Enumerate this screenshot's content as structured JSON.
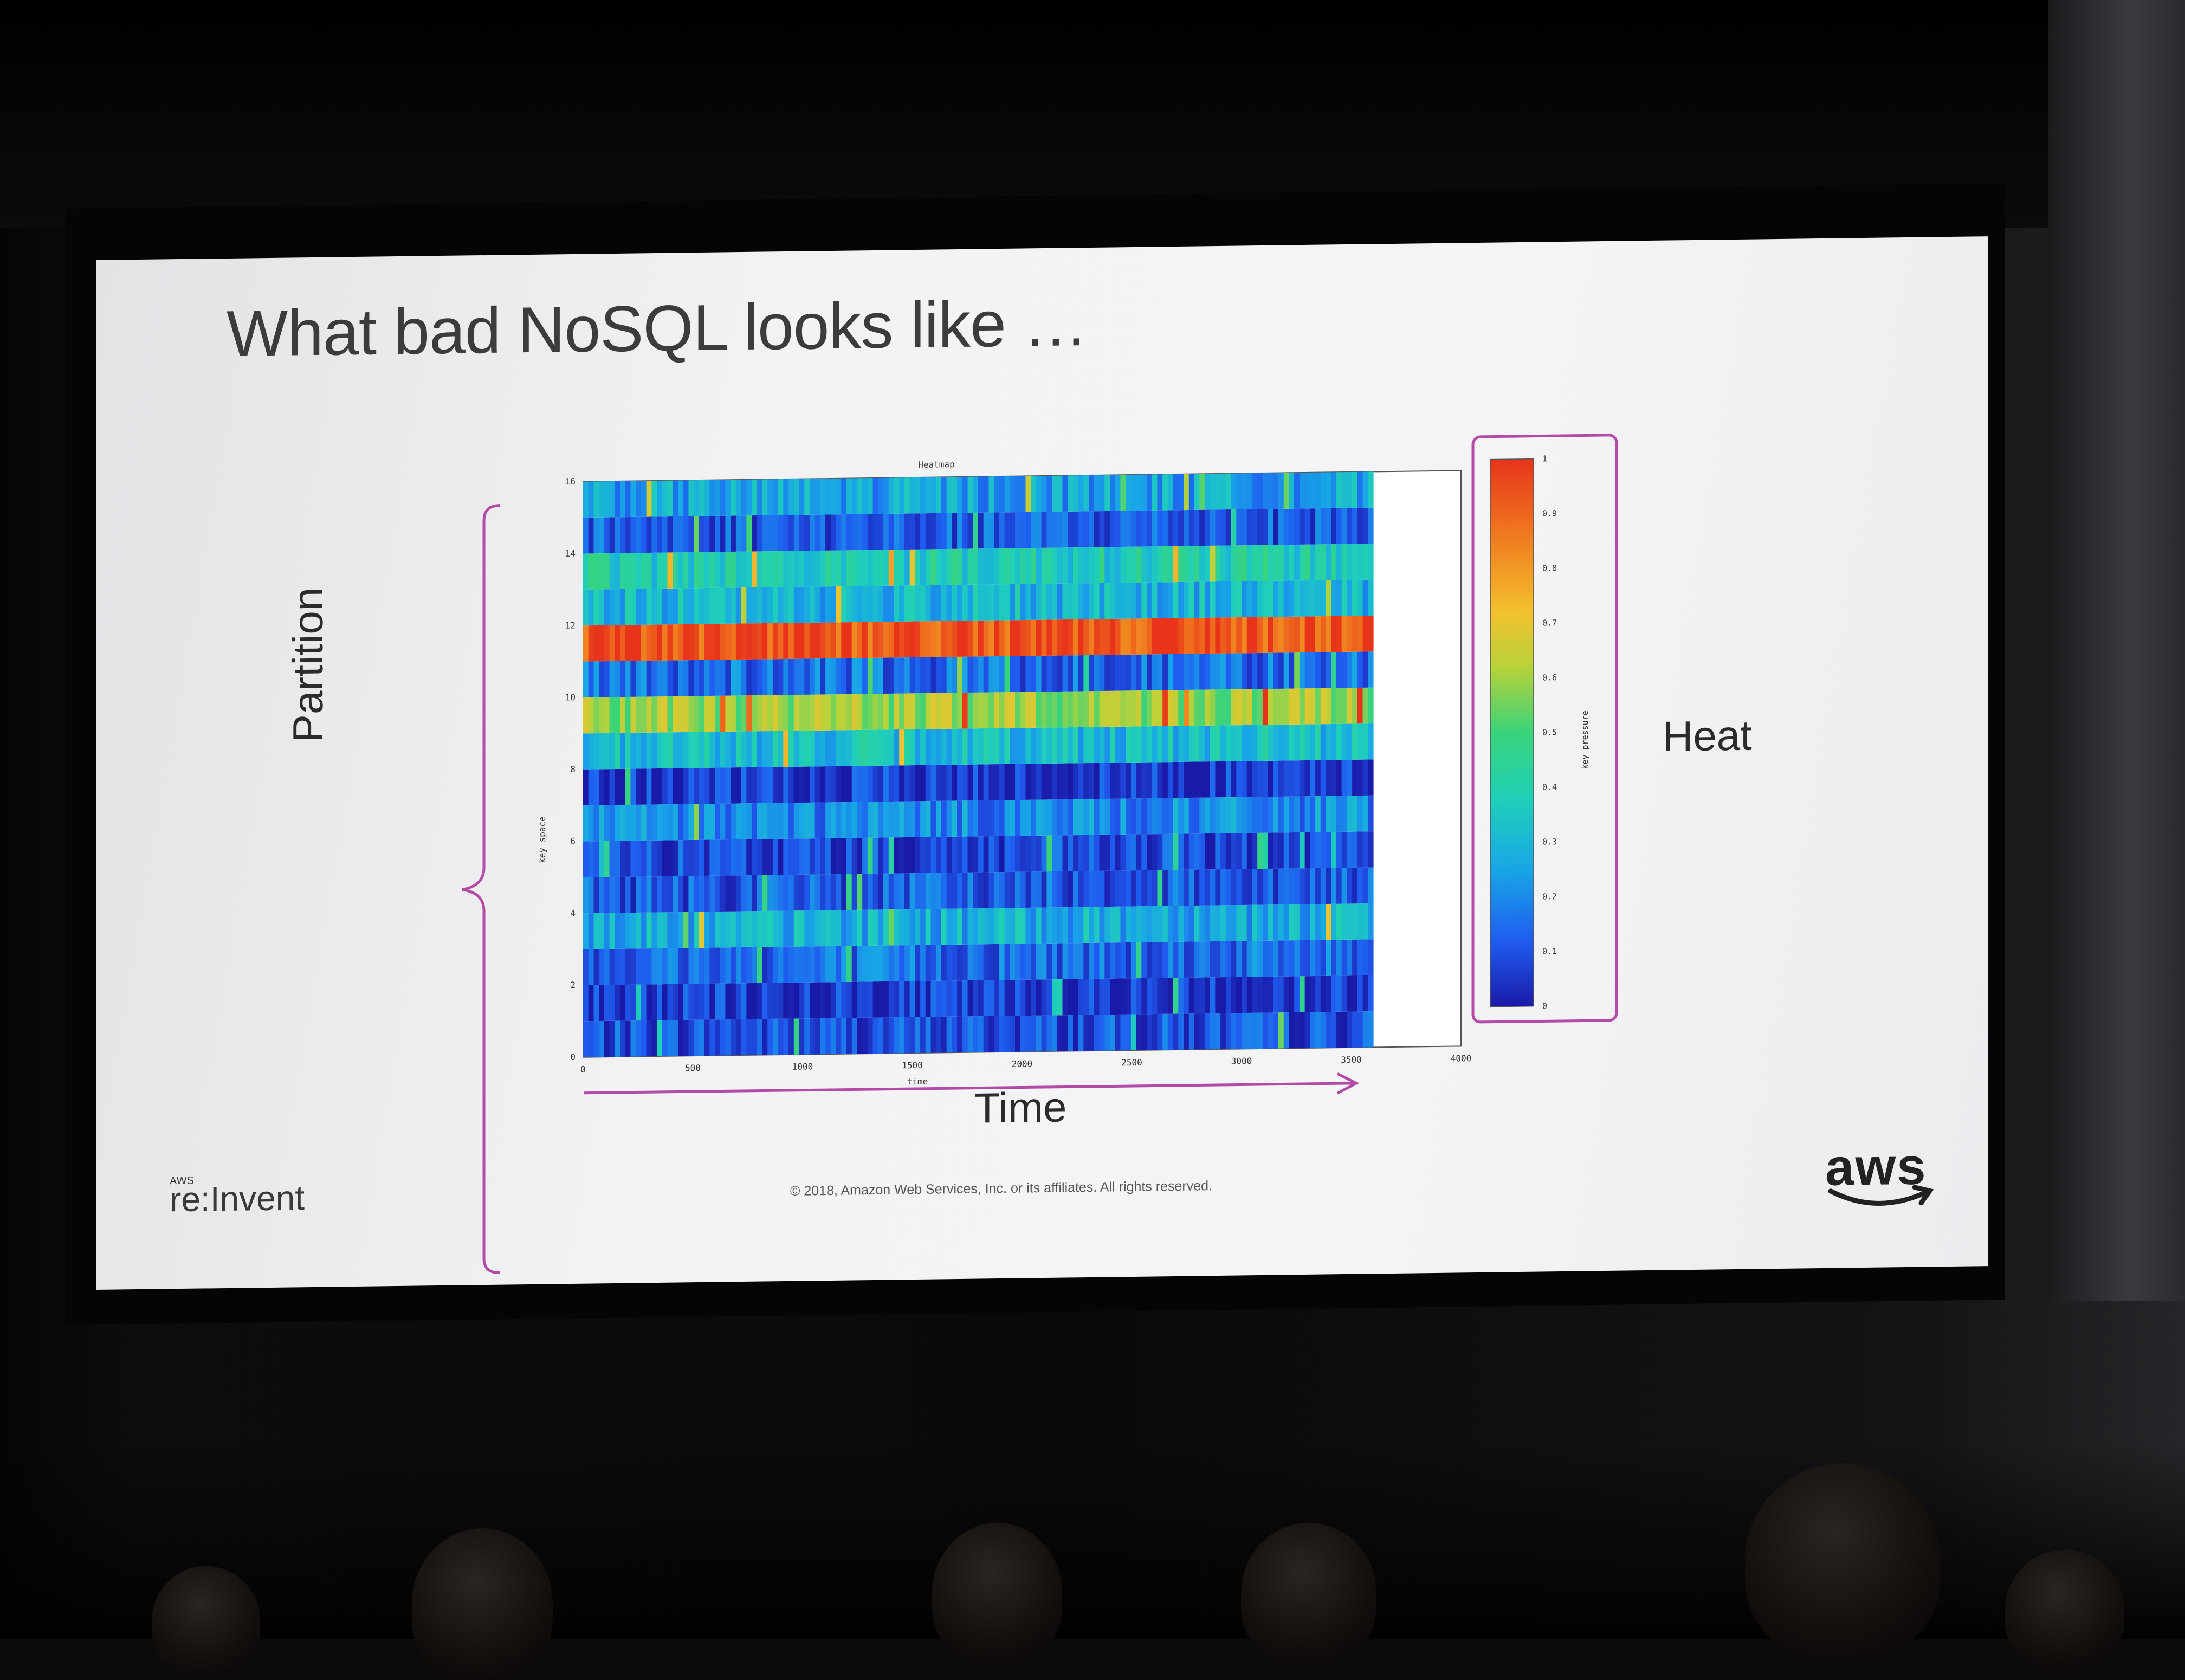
{
  "slide": {
    "title": "What bad NoSQL looks like …",
    "partition_label": "Partition",
    "time_label": "Time",
    "heat_label": "Heat",
    "copyright": "© 2018, Amazon Web Services, Inc. or its affiliates. All rights reserved.",
    "event_logo_prefix": "AWS",
    "event_logo": "re:Invent",
    "brand_logo": "aws"
  },
  "colors": {
    "accent_bracket": "#b24aa6",
    "colormap": [
      "#1a1aa8",
      "#1f5cf0",
      "#18a6e6",
      "#1fd0b8",
      "#3ad37a",
      "#b8d23a",
      "#f2c12e",
      "#f07a1f",
      "#e8341a"
    ]
  },
  "chart_data": {
    "type": "heatmap",
    "title": "Heatmap",
    "xlabel": "time",
    "ylabel": "key space",
    "colorbar_label": "key pressure",
    "xlim": [
      0,
      4000
    ],
    "ylim": [
      0,
      16
    ],
    "x_ticks": [
      "0",
      "500",
      "1000",
      "1500",
      "2000",
      "2500",
      "3000",
      "3500",
      "4000"
    ],
    "y_ticks": [
      "0",
      "2",
      "4",
      "6",
      "8",
      "10",
      "12",
      "14",
      "16"
    ],
    "colorbar_ticks": [
      "0",
      "0.1",
      "0.2",
      "0.3",
      "0.4",
      "0.5",
      "0.6",
      "0.7",
      "0.8",
      "0.9",
      "1"
    ],
    "color_range": [
      0,
      1
    ],
    "data_x_extent": [
      0,
      3600
    ],
    "rows": [
      {
        "key_from": 0,
        "key_to": 1,
        "typical_pressure": 0.1
      },
      {
        "key_from": 1,
        "key_to": 2,
        "typical_pressure": 0.06
      },
      {
        "key_from": 2,
        "key_to": 3,
        "typical_pressure": 0.15
      },
      {
        "key_from": 3,
        "key_to": 4,
        "typical_pressure": 0.28
      },
      {
        "key_from": 4,
        "key_to": 5,
        "typical_pressure": 0.12
      },
      {
        "key_from": 5,
        "key_to": 6,
        "typical_pressure": 0.08
      },
      {
        "key_from": 6,
        "key_to": 7,
        "typical_pressure": 0.2
      },
      {
        "key_from": 7,
        "key_to": 8,
        "typical_pressure": 0.06
      },
      {
        "key_from": 8,
        "key_to": 9,
        "typical_pressure": 0.32
      },
      {
        "key_from": 9,
        "key_to": 10,
        "typical_pressure": 0.6
      },
      {
        "key_from": 10,
        "key_to": 11,
        "typical_pressure": 0.15
      },
      {
        "key_from": 11,
        "key_to": 12,
        "typical_pressure": 0.95
      },
      {
        "key_from": 12,
        "key_to": 13,
        "typical_pressure": 0.3
      },
      {
        "key_from": 13,
        "key_to": 14,
        "typical_pressure": 0.38
      },
      {
        "key_from": 14,
        "key_to": 15,
        "typical_pressure": 0.12
      },
      {
        "key_from": 15,
        "key_to": 16,
        "typical_pressure": 0.25
      }
    ]
  }
}
